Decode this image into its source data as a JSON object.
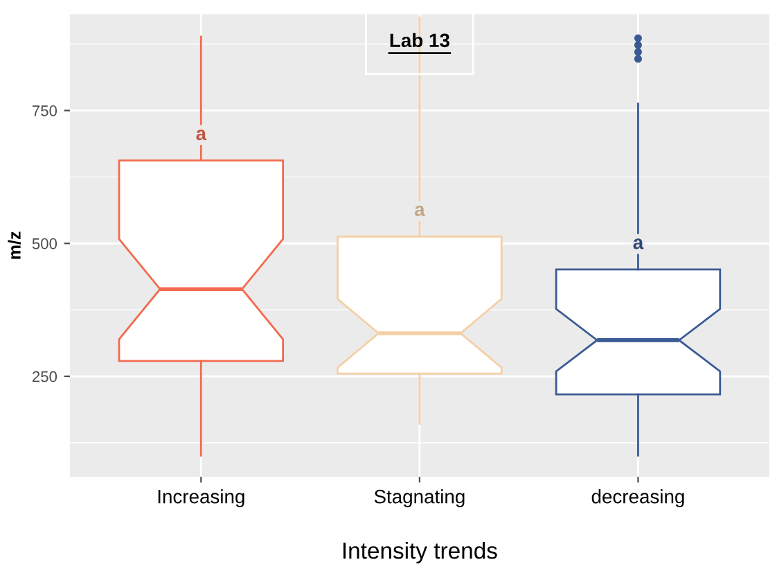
{
  "chart_data": {
    "type": "box",
    "title": "Lab 13",
    "xlabel": "Intensity trends",
    "ylabel": "m/z",
    "categories": [
      "Increasing",
      "Stagnating",
      "decreasing"
    ],
    "colors": [
      "#f26b4f",
      "#f5cfa5",
      "#3a5a94"
    ],
    "boxes": [
      {
        "low": 101,
        "q1": 279,
        "median": 414,
        "q3": 656,
        "high": 889
      },
      {
        "low": 161,
        "q1": 255,
        "median": 331,
        "q3": 513,
        "high": 925
      },
      {
        "low": 101,
        "q1": 216,
        "median": 318,
        "q3": 451,
        "high": 763,
        "outliers": [
          886,
          873,
          860,
          847
        ]
      }
    ],
    "annotations": [
      "a",
      "a",
      "a"
    ],
    "ylim": [
      61,
      931
    ],
    "yticks": [
      250,
      500,
      750
    ],
    "grid": true,
    "legend": false
  }
}
